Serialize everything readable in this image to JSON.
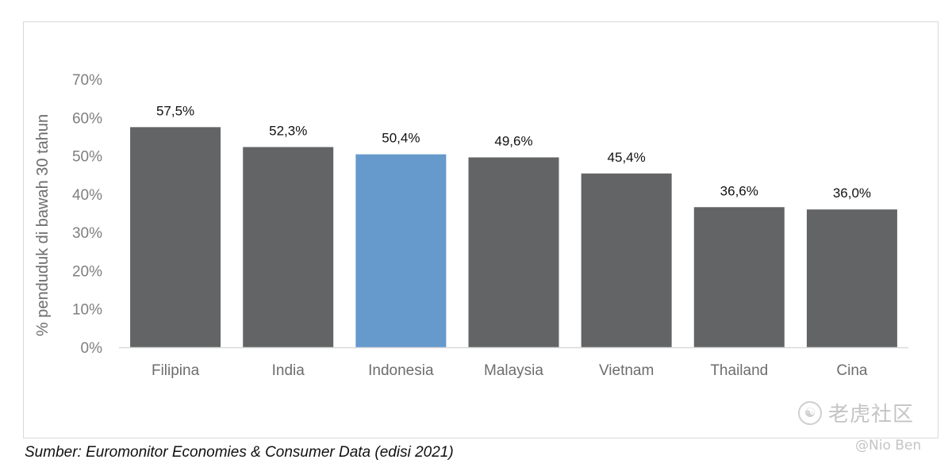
{
  "chart_data": {
    "type": "bar",
    "categories": [
      "Filipina",
      "India",
      "Indonesia",
      "Malaysia",
      "Vietnam",
      "Thailand",
      "Cina"
    ],
    "values": [
      57.5,
      52.3,
      50.4,
      49.6,
      45.4,
      36.6,
      36.0
    ],
    "value_labels": [
      "57,5%",
      "52,3%",
      "50,4%",
      "49,6%",
      "45,4%",
      "36,6%",
      "36,0%"
    ],
    "highlight_category": "Indonesia",
    "ylabel": "% penduduk di bawah 30 tahun",
    "ylim": [
      0,
      70
    ],
    "y_ticks": [
      "0%",
      "10%",
      "20%",
      "30%",
      "40%",
      "50%",
      "60%",
      "70%"
    ],
    "grid": false,
    "legend": "none",
    "colors": {
      "bar": "#636466",
      "highlight": "#6699cc",
      "axis": "#d9d9d9"
    }
  },
  "source_note": "Sumber: Euromonitor Economies & Consumer Data (edisi 2021)",
  "watermark": {
    "brand": "老虎社区",
    "author": "@Nio Ben",
    "logo_icon": "tiger-swirl-icon"
  }
}
